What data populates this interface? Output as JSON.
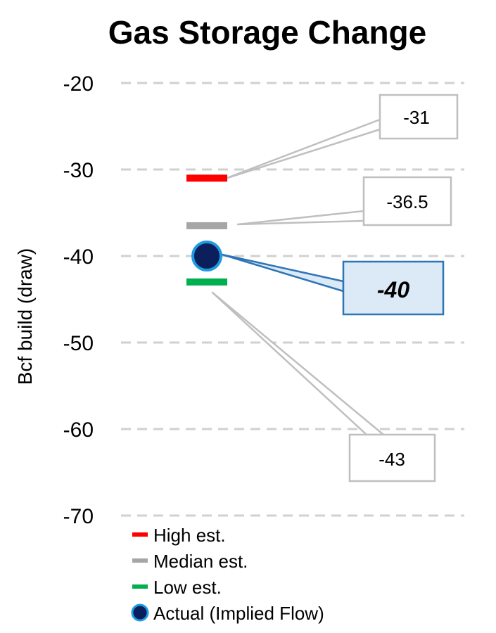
{
  "chart_data": {
    "type": "scatter",
    "title": "Gas Storage Change",
    "ylabel": "Bcf build (draw)",
    "ylim": [
      -70,
      -20
    ],
    "yticks": [
      -20,
      -30,
      -40,
      -50,
      -60,
      -70
    ],
    "grid": true,
    "legend_position": "bottom-left",
    "series": [
      {
        "name": "High est.",
        "values": [
          -31
        ],
        "marker": "dash",
        "color": "#ff0000",
        "label": "-31"
      },
      {
        "name": "Median est.",
        "values": [
          -36.5
        ],
        "marker": "dash",
        "color": "#a6a6a6",
        "label": "-36.5"
      },
      {
        "name": "Low est.",
        "values": [
          -43
        ],
        "marker": "dash",
        "color": "#00b050",
        "label": "-43"
      },
      {
        "name": "Actual (Implied Flow)",
        "values": [
          -40
        ],
        "marker": "circle",
        "color": "#0a1f5c",
        "edge_color": "#1e9be0",
        "label": "-40"
      }
    ]
  },
  "colors": {
    "grid": "#d0d0d0",
    "callout_border": "#bfbfbf",
    "highlight_border": "#2e75b6",
    "highlight_fill": "#dce9f6"
  }
}
